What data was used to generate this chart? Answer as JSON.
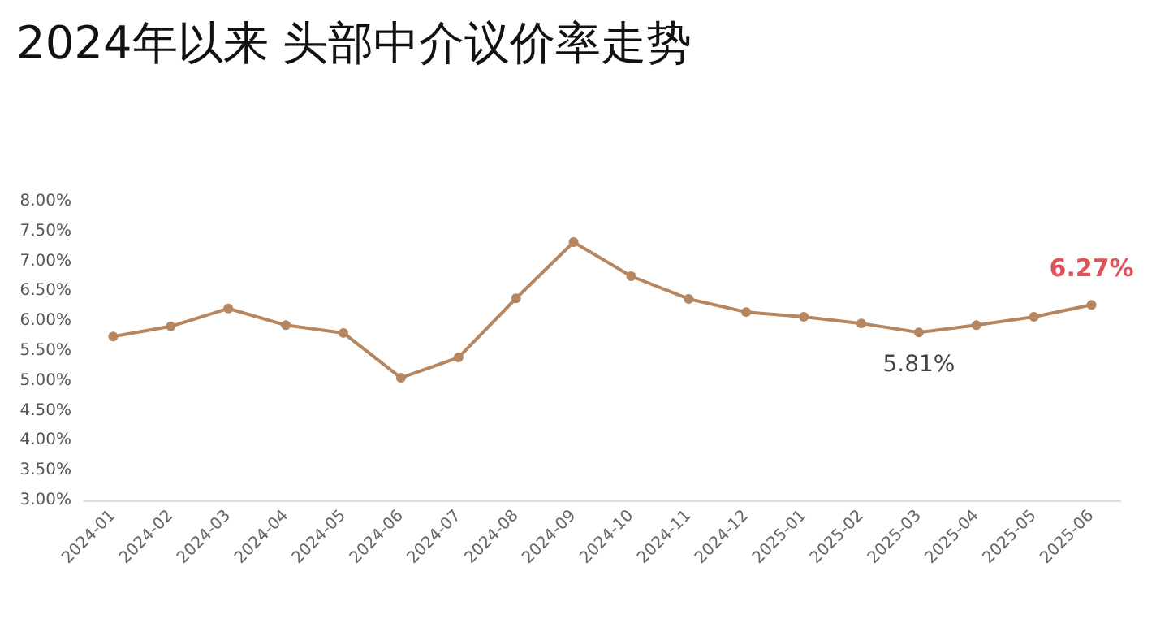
{
  "chart_data": {
    "type": "line",
    "title": "2024年以来 头部中介议价率走势",
    "categories": [
      "2024-01",
      "2024-02",
      "2024-03",
      "2024-04",
      "2024-05",
      "2024-06",
      "2024-07",
      "2024-08",
      "2024-09",
      "2024-10",
      "2024-11",
      "2024-12",
      "2025-01",
      "2025-02",
      "2025-03",
      "2025-04",
      "2025-05",
      "2025-06"
    ],
    "series": [
      {
        "color": "#b5865f",
        "values": [
          5.74,
          5.91,
          6.21,
          5.93,
          5.8,
          5.05,
          5.39,
          6.38,
          7.32,
          6.75,
          6.37,
          6.15,
          6.07,
          5.96,
          5.81,
          5.93,
          6.07,
          6.27
        ],
        "value_labels": [
          null,
          null,
          null,
          null,
          null,
          null,
          null,
          null,
          null,
          null,
          null,
          null,
          null,
          null,
          "5.81%",
          null,
          null,
          "6.27%"
        ]
      }
    ],
    "ylim": [
      3,
      8
    ],
    "yticks": [
      {
        "value": 3,
        "label": "3.00%"
      },
      {
        "value": 3.5,
        "label": "3.50%"
      },
      {
        "value": 4,
        "label": "4.00%"
      },
      {
        "value": 4.5,
        "label": "4.50%"
      },
      {
        "value": 5,
        "label": "5.00%"
      },
      {
        "value": 5.5,
        "label": "5.50%"
      },
      {
        "value": 6,
        "label": "6.00%"
      },
      {
        "value": 6.5,
        "label": "6.50%"
      },
      {
        "value": 7,
        "label": "7.00%"
      },
      {
        "value": 7.5,
        "label": "7.50%"
      },
      {
        "value": 8,
        "label": "8.00%"
      }
    ],
    "marker": "circle",
    "line_style": "solid",
    "grid": false
  }
}
